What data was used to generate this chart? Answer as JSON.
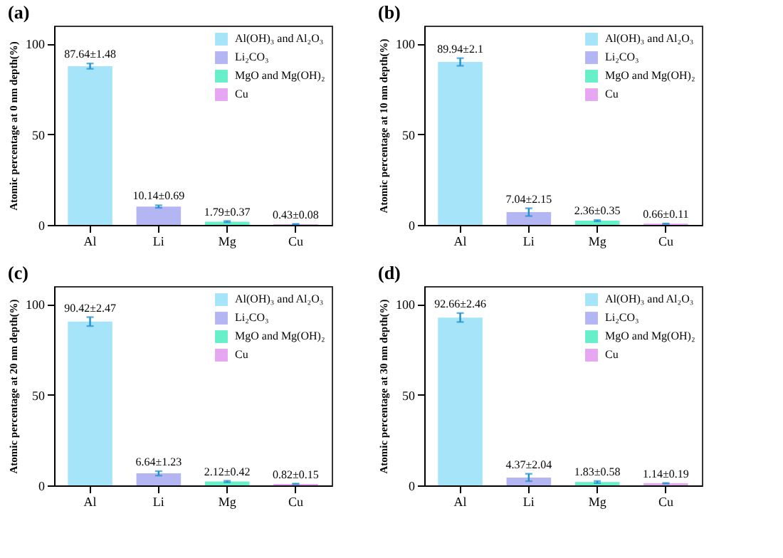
{
  "chart_data": [
    {
      "type": "bar",
      "title": "(a)",
      "ylabel": "Atomic percentage at 0 nm depth(%)",
      "categories": [
        "Al",
        "Li",
        "Mg",
        "Cu"
      ],
      "ylim": [
        0,
        110
      ],
      "yticks": [
        0,
        50,
        100
      ],
      "legend": "top right",
      "series": [
        {
          "name": "Al(OH)₃ and Al₂O₃",
          "color": "#a6e4fa",
          "values": [
            87.64,
            null,
            null,
            null
          ],
          "errors": [
            1.48,
            null,
            null,
            null
          ],
          "value_labels": [
            "87.64±1.48",
            null,
            null,
            null
          ]
        },
        {
          "name": "Li₂CO₃",
          "color": "#b3b6f2",
          "values": [
            null,
            10.14,
            null,
            null
          ],
          "errors": [
            null,
            0.69,
            null,
            null
          ],
          "value_labels": [
            null,
            "10.14±0.69",
            null,
            null
          ]
        },
        {
          "name": "MgO and Mg(OH)₂",
          "color": "#66efc8",
          "values": [
            null,
            null,
            1.79,
            null
          ],
          "errors": [
            null,
            null,
            0.37,
            null
          ],
          "value_labels": [
            null,
            null,
            "1.79±0.37",
            null
          ]
        },
        {
          "name": "Cu",
          "color": "#e6a6f2",
          "values": [
            null,
            null,
            null,
            0.43
          ],
          "errors": [
            null,
            null,
            null,
            0.08
          ],
          "value_labels": [
            null,
            null,
            null,
            "0.43±0.08"
          ]
        }
      ]
    },
    {
      "type": "bar",
      "title": "(b)",
      "ylabel": "Atomic percentage at 10 nm depth(%)",
      "categories": [
        "Al",
        "Li",
        "Mg",
        "Cu"
      ],
      "ylim": [
        0,
        110
      ],
      "yticks": [
        0,
        50,
        100
      ],
      "legend": "top right",
      "series": [
        {
          "name": "Al(OH)₃ and Al₂O₃",
          "color": "#a6e4fa",
          "values": [
            89.94,
            null,
            null,
            null
          ],
          "errors": [
            2.1,
            null,
            null,
            null
          ],
          "value_labels": [
            "89.94±2.1",
            null,
            null,
            null
          ]
        },
        {
          "name": "Li₂CO₃",
          "color": "#b3b6f2",
          "values": [
            null,
            7.04,
            null,
            null
          ],
          "errors": [
            null,
            2.15,
            null,
            null
          ],
          "value_labels": [
            null,
            "7.04±2.15",
            null,
            null
          ]
        },
        {
          "name": "MgO and Mg(OH)₂",
          "color": "#66efc8",
          "values": [
            null,
            null,
            2.36,
            null
          ],
          "errors": [
            null,
            null,
            0.35,
            null
          ],
          "value_labels": [
            null,
            null,
            "2.36±0.35",
            null
          ]
        },
        {
          "name": "Cu",
          "color": "#e6a6f2",
          "values": [
            null,
            null,
            null,
            0.66
          ],
          "errors": [
            null,
            null,
            null,
            0.11
          ],
          "value_labels": [
            null,
            null,
            null,
            "0.66±0.11"
          ]
        }
      ]
    },
    {
      "type": "bar",
      "title": "(c)",
      "ylabel": "Atomic percentage at 20 nm depth(%)",
      "categories": [
        "Al",
        "Li",
        "Mg",
        "Cu"
      ],
      "ylim": [
        0,
        110
      ],
      "yticks": [
        0,
        50,
        100
      ],
      "legend": "top right",
      "series": [
        {
          "name": "Al(OH)₃ and Al₂O₃",
          "color": "#a6e4fa",
          "values": [
            90.42,
            null,
            null,
            null
          ],
          "errors": [
            2.47,
            null,
            null,
            null
          ],
          "value_labels": [
            "90.42±2.47",
            null,
            null,
            null
          ]
        },
        {
          "name": "Li₂CO₃",
          "color": "#b3b6f2",
          "values": [
            null,
            6.64,
            null,
            null
          ],
          "errors": [
            null,
            1.23,
            null,
            null
          ],
          "value_labels": [
            null,
            "6.64±1.23",
            null,
            null
          ]
        },
        {
          "name": "MgO and Mg(OH)₂",
          "color": "#66efc8",
          "values": [
            null,
            null,
            2.12,
            null
          ],
          "errors": [
            null,
            null,
            0.42,
            null
          ],
          "value_labels": [
            null,
            null,
            "2.12±0.42",
            null
          ]
        },
        {
          "name": "Cu",
          "color": "#e6a6f2",
          "values": [
            null,
            null,
            null,
            0.82
          ],
          "errors": [
            null,
            null,
            null,
            0.15
          ],
          "value_labels": [
            null,
            null,
            null,
            "0.82±0.15"
          ]
        }
      ]
    },
    {
      "type": "bar",
      "title": "(d)",
      "ylabel": "Atomic percentage at 30 nm depth(%)",
      "categories": [
        "Al",
        "Li",
        "Mg",
        "Cu"
      ],
      "ylim": [
        0,
        110
      ],
      "yticks": [
        0,
        50,
        100
      ],
      "legend": "top right",
      "series": [
        {
          "name": "Al(OH)₃ and Al₂O₃",
          "color": "#a6e4fa",
          "values": [
            92.66,
            null,
            null,
            null
          ],
          "errors": [
            2.46,
            null,
            null,
            null
          ],
          "value_labels": [
            "92.66±2.46",
            null,
            null,
            null
          ]
        },
        {
          "name": "Li₂CO₃",
          "color": "#b3b6f2",
          "values": [
            null,
            4.37,
            null,
            null
          ],
          "errors": [
            null,
            2.04,
            null,
            null
          ],
          "value_labels": [
            null,
            "4.37±2.04",
            null,
            null
          ]
        },
        {
          "name": "MgO and Mg(OH)₂",
          "color": "#66efc8",
          "values": [
            null,
            null,
            1.83,
            null
          ],
          "errors": [
            null,
            null,
            0.58,
            null
          ],
          "value_labels": [
            null,
            null,
            "1.83±0.58",
            null
          ]
        },
        {
          "name": "Cu",
          "color": "#e6a6f2",
          "values": [
            null,
            null,
            null,
            1.14
          ],
          "errors": [
            null,
            null,
            null,
            0.19
          ],
          "value_labels": [
            null,
            null,
            null,
            "1.14±0.19"
          ]
        }
      ]
    }
  ]
}
